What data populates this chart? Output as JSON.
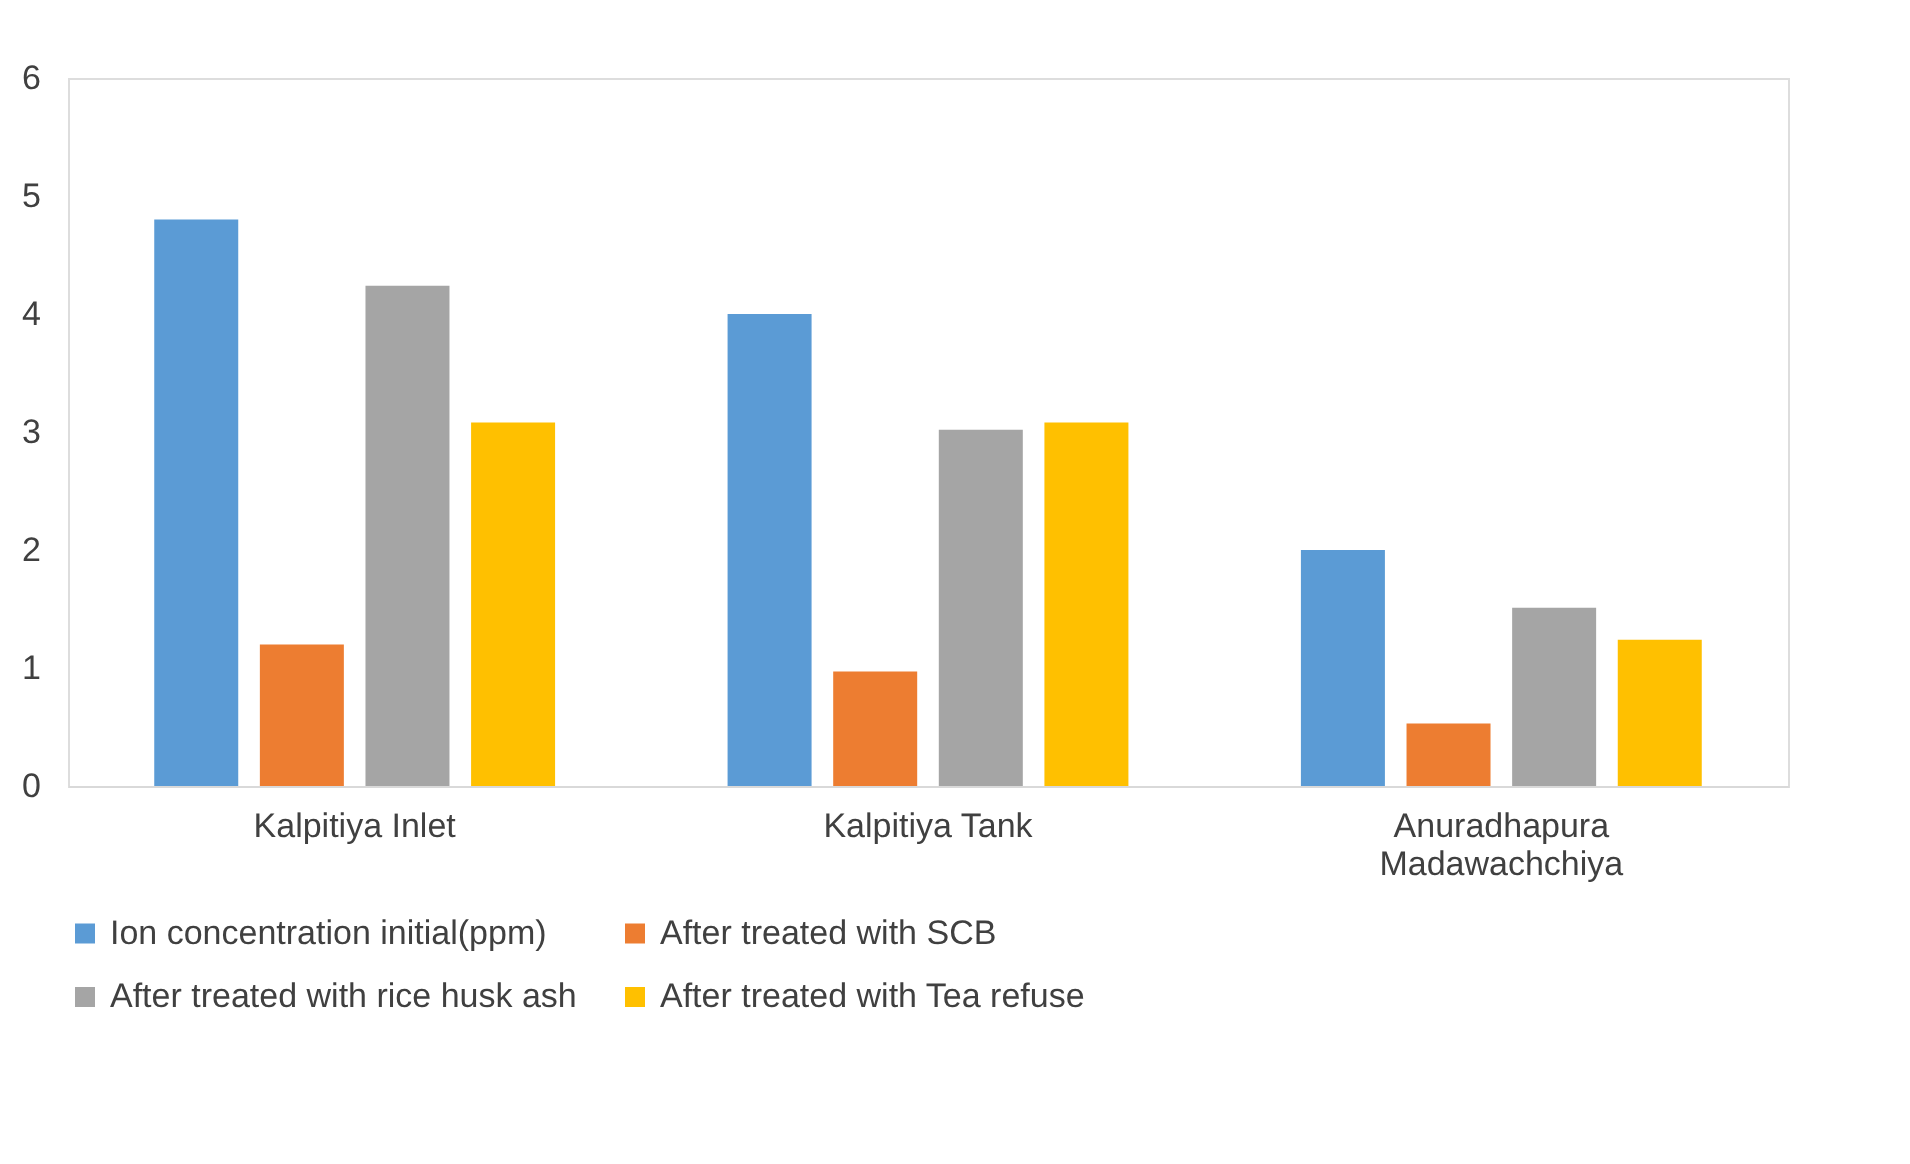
{
  "chart_data": {
    "type": "bar",
    "categories": [
      "Kalpitiya Inlet",
      "Kalpitiya Tank",
      "Anuradhapura Madawachchiya"
    ],
    "series": [
      {
        "name": "Ion concentration initial(ppm)",
        "color": "#5b9bd5",
        "values": [
          4.8,
          4.0,
          2.0
        ]
      },
      {
        "name": "After treated with SCB",
        "color": "#ed7d31",
        "values": [
          1.2,
          0.97,
          0.53
        ]
      },
      {
        "name": "After treated with rice husk ash",
        "color": "#a5a5a5",
        "values": [
          4.24,
          3.02,
          1.51
        ]
      },
      {
        "name": "After treated with Tea refuse",
        "color": "#ffc000",
        "values": [
          3.08,
          3.08,
          1.24
        ]
      }
    ],
    "ylim": [
      0,
      6
    ],
    "yticks": [
      0,
      1,
      2,
      3,
      4,
      5,
      6
    ],
    "grid": false,
    "legend": "bottom"
  }
}
